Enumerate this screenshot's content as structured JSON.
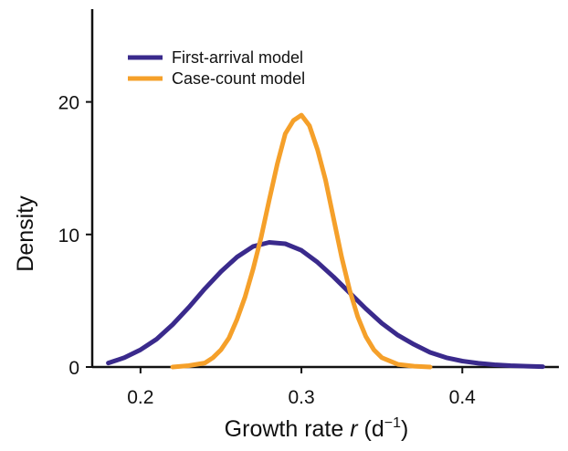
{
  "chart_data": {
    "type": "line",
    "xlabel": "Growth rate r (d⁻¹)",
    "xlabel_parts": {
      "prefix": "Growth rate ",
      "variable": "r",
      "unit": " (d",
      "sup": "−1",
      "close": ")"
    },
    "ylabel": "Density",
    "xlim": [
      0.17,
      0.46
    ],
    "ylim": [
      0,
      27
    ],
    "xticks": [
      0.2,
      0.3,
      0.4
    ],
    "xtick_labels": [
      "0.2",
      "0.3",
      "0.4"
    ],
    "yticks": [
      0,
      10,
      20
    ],
    "ytick_labels": [
      "0",
      "10",
      "20"
    ],
    "grid": false,
    "legend_position": "top-left",
    "series": [
      {
        "name": "First-arrival model",
        "color": "#3a2a8c",
        "x": [
          0.18,
          0.19,
          0.2,
          0.21,
          0.22,
          0.23,
          0.24,
          0.25,
          0.26,
          0.27,
          0.28,
          0.29,
          0.3,
          0.31,
          0.32,
          0.33,
          0.34,
          0.35,
          0.36,
          0.37,
          0.38,
          0.39,
          0.4,
          0.41,
          0.42,
          0.43,
          0.44,
          0.45
        ],
        "y": [
          0.3,
          0.7,
          1.3,
          2.1,
          3.2,
          4.5,
          5.9,
          7.2,
          8.3,
          9.1,
          9.4,
          9.3,
          8.8,
          7.9,
          6.8,
          5.6,
          4.4,
          3.3,
          2.4,
          1.7,
          1.1,
          0.7,
          0.45,
          0.28,
          0.17,
          0.1,
          0.06,
          0.03
        ]
      },
      {
        "name": "Case-count model",
        "color": "#f5a02a",
        "x": [
          0.22,
          0.23,
          0.24,
          0.245,
          0.25,
          0.255,
          0.26,
          0.265,
          0.27,
          0.275,
          0.28,
          0.285,
          0.29,
          0.295,
          0.3,
          0.305,
          0.31,
          0.315,
          0.32,
          0.325,
          0.33,
          0.335,
          0.34,
          0.345,
          0.35,
          0.36,
          0.37,
          0.38
        ],
        "y": [
          0.0,
          0.1,
          0.3,
          0.7,
          1.3,
          2.2,
          3.6,
          5.3,
          7.4,
          9.8,
          12.6,
          15.3,
          17.6,
          18.6,
          19.0,
          18.2,
          16.4,
          14.1,
          11.2,
          8.3,
          5.8,
          3.8,
          2.3,
          1.3,
          0.7,
          0.2,
          0.06,
          0.0
        ]
      }
    ]
  }
}
